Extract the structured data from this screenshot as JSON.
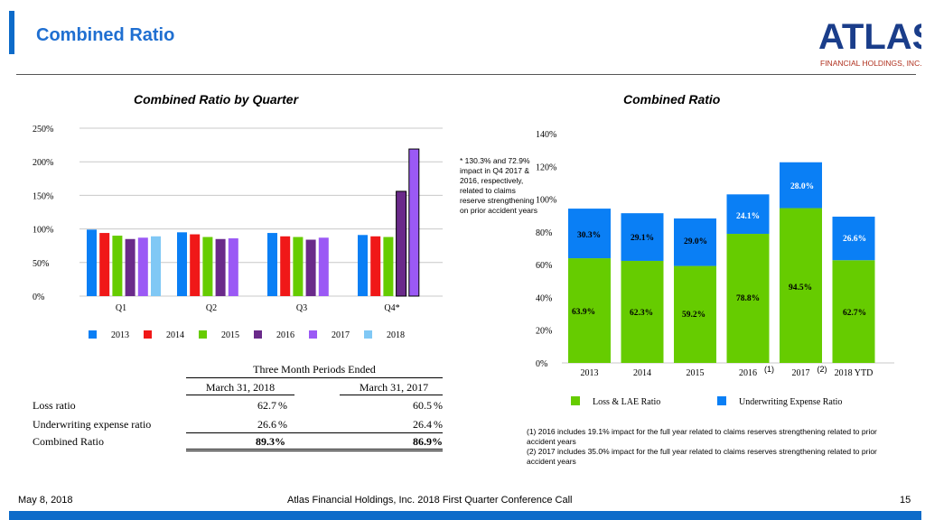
{
  "header": {
    "title": "Combined Ratio",
    "logo": {
      "main": "ATLAS",
      "sub": "FINANCIAL HOLDINGS, INC."
    }
  },
  "colors": {
    "accent": "#0d6bc9",
    "title": "#1f6fd1",
    "c2013": "#0a7ff5",
    "c2014": "#f01818",
    "c2015": "#66cc00",
    "c2016": "#6a2a8a",
    "c2017": "#9b59f5",
    "c2018": "#80c8f5",
    "loss": "#66cc00",
    "uw": "#0a7ff5",
    "logo": "#1a3d8a"
  },
  "chart_data": [
    {
      "type": "bar",
      "title": "Combined Ratio by Quarter",
      "categories": [
        "Q1",
        "Q2",
        "Q3",
        "Q4*"
      ],
      "ylim": [
        0,
        250
      ],
      "ytick_labels": [
        "0%",
        "50%",
        "100%",
        "150%",
        "200%",
        "250%"
      ],
      "series": [
        {
          "name": "2013",
          "values": [
            99,
            95,
            94,
            91
          ]
        },
        {
          "name": "2014",
          "values": [
            94,
            92,
            89,
            89
          ]
        },
        {
          "name": "2015",
          "values": [
            90,
            88,
            88,
            88
          ]
        },
        {
          "name": "2016",
          "values": [
            85,
            85,
            84,
            156
          ]
        },
        {
          "name": "2017",
          "values": [
            87,
            86,
            87,
            219
          ]
        },
        {
          "name": "2018",
          "values": [
            89,
            null,
            null,
            null
          ]
        }
      ],
      "annotation": "* 130.3% and 72.9% impact in Q4 2017 & 2016, respectively, related to claims reserve strengthening on prior accident years"
    },
    {
      "type": "bar",
      "stacked": true,
      "title": "Combined Ratio",
      "categories": [
        "2013",
        "2014",
        "2015",
        "2016",
        "2017",
        "2018 YTD"
      ],
      "category_notes": [
        "",
        "",
        "",
        "(1)",
        "(2)",
        ""
      ],
      "ylim": [
        0,
        140
      ],
      "ytick_labels": [
        "0%",
        "20%",
        "40%",
        "60%",
        "80%",
        "100%",
        "120%",
        "140%"
      ],
      "series": [
        {
          "name": "Loss & LAE Ratio",
          "values": [
            63.9,
            62.3,
            59.2,
            78.8,
            94.5,
            62.7
          ]
        },
        {
          "name": "Underwriting Expense Ratio",
          "values": [
            30.3,
            29.1,
            29.0,
            24.1,
            28.0,
            26.6
          ]
        }
      ],
      "value_labels_loss": [
        "63.9%",
        "62.3%",
        "59.2%",
        "78.8%",
        "94.5%",
        "62.7%"
      ],
      "value_labels_uw": [
        "30.3%",
        "29.1%",
        "29.0%",
        "24.1%",
        "28.0%",
        "26.6%"
      ]
    }
  ],
  "table": {
    "group_header": "Three Month Periods Ended",
    "col1": "March 31, 2018",
    "col2": "March 31, 2017",
    "rows": [
      {
        "label": "Loss ratio",
        "v1": "62.7",
        "v2": "60.5"
      },
      {
        "label": "Underwriting expense ratio",
        "v1": "26.6",
        "v2": "26.4"
      },
      {
        "label": "Combined Ratio",
        "v1": "89.3%",
        "v2": "86.9%"
      }
    ],
    "pct": "%"
  },
  "notes": {
    "n1": "(1) 2016 includes 19.1% impact for the full year related to claims reserves strengthening related to prior accident years",
    "n2": "(2) 2017 includes 35.0% impact for the full year related to claims reserves strengthening related to prior accident years"
  },
  "footer": {
    "date": "May 8, 2018",
    "center": "Atlas Financial Holdings, Inc. 2018 First Quarter Conference Call",
    "page": "15"
  }
}
